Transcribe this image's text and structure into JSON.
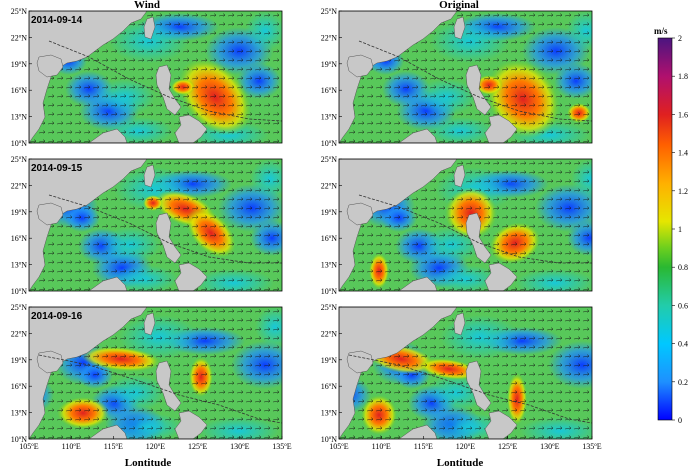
{
  "columns": [
    "Wind",
    "Original"
  ],
  "rows": [
    {
      "date": "2014-09-14"
    },
    {
      "date": "2014-09-15"
    },
    {
      "date": "2014-09-16"
    }
  ],
  "lat_ticks": [
    "25",
    "22",
    "19",
    "16",
    "13",
    "10"
  ],
  "lat_suffix": "N",
  "lon_ticks": [
    "105",
    "110",
    "115",
    "120",
    "125",
    "130",
    "135"
  ],
  "lon_suffix": "E",
  "xlabel": "Lontitude",
  "colorbar": {
    "unit": "m/s",
    "ticks": [
      "0",
      "0.2",
      "0.4",
      "0.6",
      "0.8",
      "1",
      "1.2",
      "1.4",
      "1.6",
      "1.8",
      "2"
    ],
    "colors": [
      "#0000ff",
      "#1e90ff",
      "#00c8ff",
      "#22ccaa",
      "#2ab832",
      "#6ccf1e",
      "#e6e600",
      "#ffb000",
      "#ff6000",
      "#e02020",
      "#b0106e",
      "#4b1580"
    ]
  },
  "colors": {
    "land": "#c8c8c8",
    "track": "#333333"
  }
}
